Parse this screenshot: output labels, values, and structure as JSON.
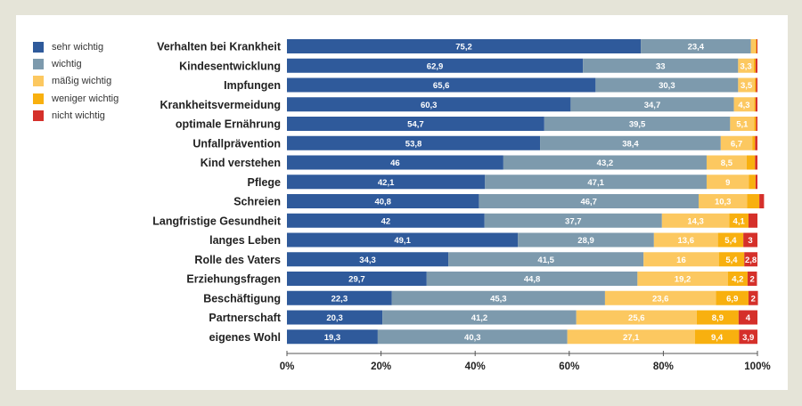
{
  "chart_data": {
    "type": "bar",
    "orientation": "horizontal",
    "stacked": true,
    "title": "",
    "xlabel": "",
    "ylabel": "",
    "xlim": [
      0,
      100
    ],
    "grid": false,
    "legend_position": "top-left",
    "categories": [
      "Verhalten bei Krankheit",
      "Kindesentwicklung",
      "Impfungen",
      "Krankheitsvermeidung",
      "optimale Ernährung",
      "Unfallprävention",
      "Kind verstehen",
      "Pflege",
      "Schreien",
      "Langfristige Gesundheit",
      "langes Leben",
      "Rolle des Vaters",
      "Erziehungsfragen",
      "Beschäftigung",
      "Partnerschaft",
      "eigenes Wohl"
    ],
    "series": [
      {
        "name": "sehr wichtig",
        "color": "#2f5a9b",
        "values": [
          75.2,
          62.9,
          65.6,
          60.3,
          54.7,
          53.8,
          46,
          42.1,
          40.8,
          42,
          49.1,
          34.3,
          29.7,
          22.3,
          20.3,
          19.3
        ],
        "labels": [
          "75,2",
          "62,9",
          "65,6",
          "60,3",
          "54,7",
          "53,8",
          "46",
          "42,1",
          "40,8",
          "42",
          "49,1",
          "34,3",
          "29,7",
          "22,3",
          "20,3",
          "19,3"
        ]
      },
      {
        "name": "wichtig",
        "color": "#7d9aad",
        "values": [
          23.4,
          33,
          30.3,
          34.7,
          39.5,
          38.4,
          43.2,
          47.1,
          46.7,
          37.7,
          28.9,
          41.5,
          44.8,
          45.3,
          41.2,
          40.3
        ],
        "labels": [
          "23,4",
          "33",
          "30,3",
          "34,7",
          "39,5",
          "38,4",
          "43,2",
          "47,1",
          "46,7",
          "37,7",
          "28,9",
          "41,5",
          "44,8",
          "45,3",
          "41,2",
          "40,3"
        ]
      },
      {
        "name": "mäßig wichtig",
        "color": "#fcc860",
        "values": [
          1.0,
          3.3,
          3.5,
          4.3,
          5.1,
          6.7,
          8.5,
          9,
          10.3,
          14.3,
          13.6,
          16,
          19.2,
          23.6,
          25.6,
          27.1
        ],
        "labels": [
          "",
          "3,3",
          "3,5",
          "4,3",
          "5,1",
          "6,7",
          "8,5",
          "9",
          "10,3",
          "14,3",
          "13,6",
          "16",
          "19,2",
          "23,6",
          "25,6",
          "27,1"
        ]
      },
      {
        "name": "weniger wichtig",
        "color": "#f8b00f",
        "values": [
          0.2,
          0.4,
          0.3,
          0.3,
          0.4,
          0.6,
          1.8,
          1.4,
          2.6,
          4.1,
          5.4,
          5.4,
          4.2,
          6.9,
          8.9,
          9.4
        ],
        "labels": [
          "",
          "",
          "",
          "",
          "",
          "",
          "",
          "",
          "",
          "4,1",
          "5,4",
          "5,4",
          "4,2",
          "6,9",
          "8,9",
          "9,4"
        ]
      },
      {
        "name": "nicht wichtig",
        "color": "#d5302a",
        "values": [
          0.2,
          0.4,
          0.3,
          0.4,
          0.3,
          0.5,
          0.5,
          0.4,
          1.0,
          1.9,
          3,
          2.8,
          2,
          2,
          4,
          3.9
        ],
        "labels": [
          "",
          "",
          "",
          "",
          "",
          "",
          "",
          "",
          "",
          "",
          "3",
          "2,8",
          "2",
          "2",
          "4",
          "3,9"
        ]
      }
    ],
    "x_ticks": [
      0,
      20,
      40,
      60,
      80,
      100
    ],
    "x_tick_labels": [
      "0%",
      "20%",
      "40%",
      "60%",
      "80%",
      "100%"
    ]
  },
  "legend": {
    "items": [
      {
        "label": "sehr wichtig",
        "color": "#2f5a9b"
      },
      {
        "label": "wichtig",
        "color": "#7d9aad"
      },
      {
        "label": "mäßig wichtig",
        "color": "#fcc860"
      },
      {
        "label": "weniger wichtig",
        "color": "#f8b00f"
      },
      {
        "label": "nicht wichtig",
        "color": "#d5302a"
      }
    ]
  }
}
